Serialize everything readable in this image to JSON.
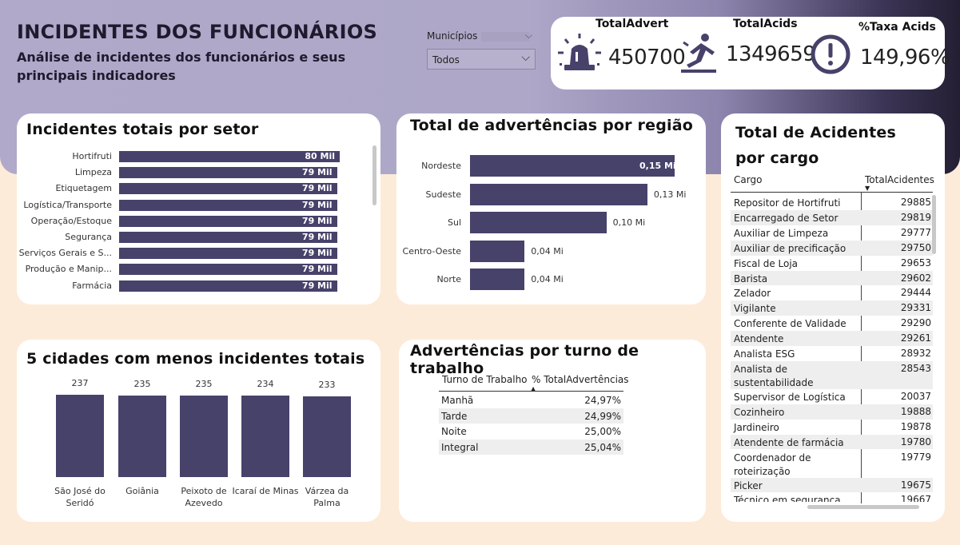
{
  "header": {
    "title": "INCIDENTES DOS FUNCIONÁRIOS",
    "subtitle": "Análise de incidentes dos funcionários e seus principais indicadores"
  },
  "filter": {
    "label": "Municípios",
    "value": "Todos",
    "icon": "chevron-down-icon"
  },
  "kpis": [
    {
      "label": "TotalAdvert",
      "value": "450700",
      "icon": "siren-icon"
    },
    {
      "label": "TotalAcids",
      "value": "1349659",
      "icon": "falling-person-icon"
    },
    {
      "label": "%Taxa Acids",
      "value": "149,96%",
      "icon": "exclamation-circle-icon"
    }
  ],
  "colors": {
    "bar": "#46426a",
    "header_light": "#b0a9c9",
    "header_dark": "#231f33",
    "background": "#fdebd9"
  },
  "chart_data": [
    {
      "type": "bar",
      "orientation": "horizontal",
      "title": "Incidentes totais por setor",
      "categories": [
        "Hortifruti",
        "Limpeza",
        "Etiquetagem",
        "Logística/Transporte",
        "Operação/Estoque",
        "Segurança",
        "Serviços Gerais e S...",
        "Produção e Manip...",
        "Farmácia"
      ],
      "values": [
        80,
        79,
        79,
        79,
        79,
        79,
        79,
        79,
        79
      ],
      "value_labels": [
        "80 Mil",
        "79 Mil",
        "79 Mil",
        "79 Mil",
        "79 Mil",
        "79 Mil",
        "79 Mil",
        "79 Mil",
        "79 Mil"
      ],
      "unit": "Mil"
    },
    {
      "type": "bar",
      "orientation": "horizontal",
      "title": "Total de advertências por região",
      "categories": [
        "Nordeste",
        "Sudeste",
        "Sul",
        "Centro-Oeste",
        "Norte"
      ],
      "values": [
        0.15,
        0.13,
        0.1,
        0.04,
        0.04
      ],
      "value_labels": [
        "0,15 Mi",
        "0,13 Mi",
        "0,10 Mi",
        "0,04 Mi",
        "0,04 Mi"
      ],
      "unit": "Mi"
    },
    {
      "type": "bar",
      "orientation": "vertical",
      "title": "5 cidades com menos incidentes totais",
      "categories": [
        "São José do Seridó",
        "Goiânia",
        "Peixoto de Azevedo",
        "Icaraí de Minas",
        "Várzea da Palma"
      ],
      "values": [
        237,
        235,
        235,
        234,
        233
      ],
      "value_labels": [
        "237",
        "235",
        "235",
        "234",
        "233"
      ]
    },
    {
      "type": "table",
      "title": "Advertências por turno de trabalho",
      "columns": [
        "Turno de Trabalho",
        "% TotalAdvertências"
      ],
      "rows": [
        [
          "Manhã",
          "24,97%"
        ],
        [
          "Tarde",
          "24,99%"
        ],
        [
          "Noite",
          "25,00%"
        ],
        [
          "Integral",
          "25,04%"
        ]
      ]
    },
    {
      "type": "table",
      "title": "Total de Acidentes por cargo",
      "columns": [
        "Cargo",
        "TotalAcidentes"
      ],
      "rows": [
        [
          "Repositor de Hortifruti",
          "29885"
        ],
        [
          "Encarregado de Setor",
          "29819"
        ],
        [
          "Auxiliar de Limpeza",
          "29777"
        ],
        [
          "Auxiliar de precificação",
          "29750"
        ],
        [
          "Fiscal de Loja",
          "29653"
        ],
        [
          "Barista",
          "29602"
        ],
        [
          "Zelador",
          "29444"
        ],
        [
          "Vigilante",
          "29331"
        ],
        [
          "Conferente de Validade",
          "29290"
        ],
        [
          "Atendente",
          "29261"
        ],
        [
          "Analista ESG",
          "28932"
        ],
        [
          "Analista de sustentabilidade",
          "28543"
        ],
        [
          "Supervisor de Logística",
          "20037"
        ],
        [
          "Cozinheiro",
          "19888"
        ],
        [
          "Jardineiro",
          "19878"
        ],
        [
          "Atendente de farmácia",
          "19780"
        ],
        [
          "Coordenador de roteirização",
          "19779"
        ],
        [
          "Picker",
          "19675"
        ],
        [
          "Técnico em segurança do",
          "19667"
        ]
      ]
    }
  ]
}
